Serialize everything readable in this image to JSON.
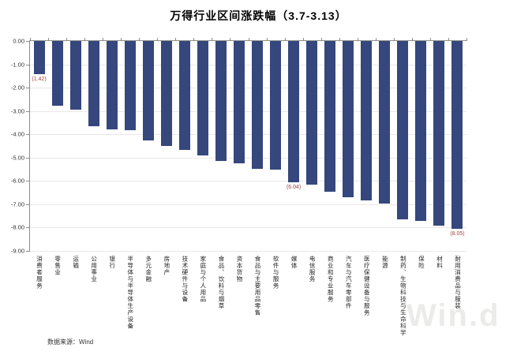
{
  "title": "万得行业区间涨跌幅（3.7-3.13）",
  "footer": {
    "source_label": "数据来源：Wind"
  },
  "watermark": "Win.d",
  "colors": {
    "bar": "#35477d",
    "value_label": "#9e4343",
    "axis": "#8c8c8c",
    "grid": "#eae7e7",
    "title_text": "#000000",
    "tick_text": "#333333",
    "watermark_text": "#ebebe9"
  },
  "chart_data": {
    "type": "bar",
    "title": "万得行业区间涨跌幅（3.7-3.13）",
    "xlabel": "",
    "ylabel": "",
    "ylim": [
      -9,
      0
    ],
    "grid": true,
    "legend_position": "none",
    "y_ticks": [
      "0.00",
      "-1.00",
      "-2.00",
      "-3.00",
      "-4.00",
      "-5.00",
      "-6.00",
      "-7.00",
      "-8.00",
      "-9.00"
    ],
    "categories": [
      "消费者服务",
      "零售业",
      "运输",
      "公用事业",
      "银行",
      "半导体与半导体生产设备",
      "多元金融",
      "房地产",
      "技术硬件与设备",
      "家庭与个人用品",
      "食品、饮料与烟草",
      "资本货物",
      "食品与主要用品零售",
      "软件与服务",
      "媒体",
      "电信服务",
      "商业和专业服务",
      "汽车与汽车零部件",
      "医疗保健设备与服务",
      "能源",
      "制药、生物科技与生命科学",
      "保险",
      "材料",
      "耐用消费品与服装"
    ],
    "values": [
      -1.42,
      -2.78,
      -2.96,
      -3.66,
      -3.78,
      -3.82,
      -4.28,
      -4.5,
      -4.66,
      -4.92,
      -5.14,
      -5.26,
      -5.47,
      -5.53,
      -6.04,
      -6.15,
      -6.45,
      -6.7,
      -6.85,
      -6.96,
      -7.66,
      -7.72,
      -7.92,
      -8.05
    ],
    "data_labels": [
      {
        "index": 0,
        "text": "(1.42)"
      },
      {
        "index": 14,
        "text": "(6.04)"
      },
      {
        "index": 23,
        "text": "(8.05)"
      }
    ]
  }
}
